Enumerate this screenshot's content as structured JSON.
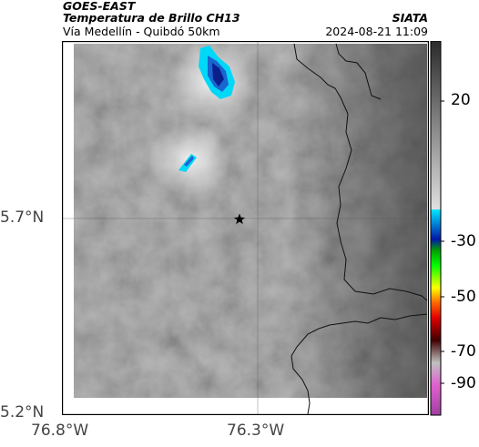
{
  "header": {
    "line1": "GOES-EAST",
    "line2": "Temperatura de Brillo CH13",
    "line3": "Vía Medellín - Quibdó 50km",
    "org": "SIATA",
    "datetime": "2024-08-21 11:09"
  },
  "map": {
    "lat_labels": [
      "5.7°N",
      "5.2°N"
    ],
    "lon_labels": [
      "76.8°W",
      "76.3°W"
    ],
    "marker": "star-icon"
  },
  "colorbar": {
    "tick_labels": [
      "20",
      "-30",
      "-50",
      "-70",
      "-90"
    ],
    "colors": {
      "gray_top": "#2b2b2b",
      "gray_bottom": "#e0e0e0",
      "cyan": "#00e5ff",
      "blue": "#0018a8",
      "green": "#00d000",
      "yellow": "#ffee00",
      "red": "#e00000",
      "purple": "#a040a0"
    }
  }
}
